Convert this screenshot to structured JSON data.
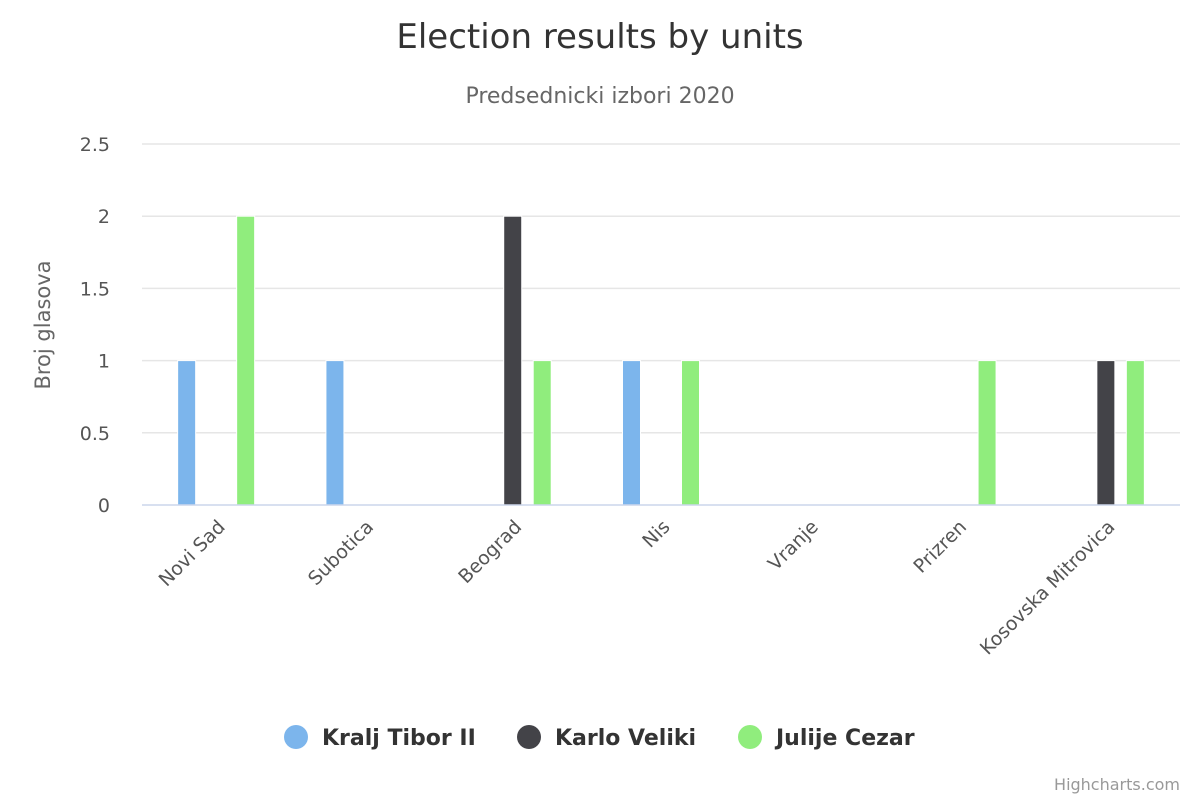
{
  "chart_data": {
    "type": "bar",
    "title": "Election results by units",
    "subtitle": "Predsednicki izbori 2020",
    "xlabel": "",
    "ylabel": "Broj glasova",
    "ylim": [
      0,
      2.5
    ],
    "yticks": [
      "0",
      "0.5",
      "1",
      "1.5",
      "2",
      "2.5"
    ],
    "categories": [
      "Novi Sad",
      "Subotica",
      "Beograd",
      "Nis",
      "Vranje",
      "Prizren",
      "Kosovska Mitrovica"
    ],
    "series": [
      {
        "name": "Kralj Tibor II",
        "color": "#7cb5ec",
        "values": [
          1,
          1,
          0,
          1,
          0,
          0,
          0
        ]
      },
      {
        "name": "Karlo Veliki",
        "color": "#434348",
        "values": [
          0,
          0,
          2,
          0,
          0,
          0,
          1
        ]
      },
      {
        "name": "Julije Cezar",
        "color": "#90ed7d",
        "values": [
          2,
          0,
          1,
          1,
          0,
          1,
          1
        ]
      }
    ],
    "grid": true,
    "legend_position": "bottom-center"
  },
  "credits": "Highcharts.com"
}
